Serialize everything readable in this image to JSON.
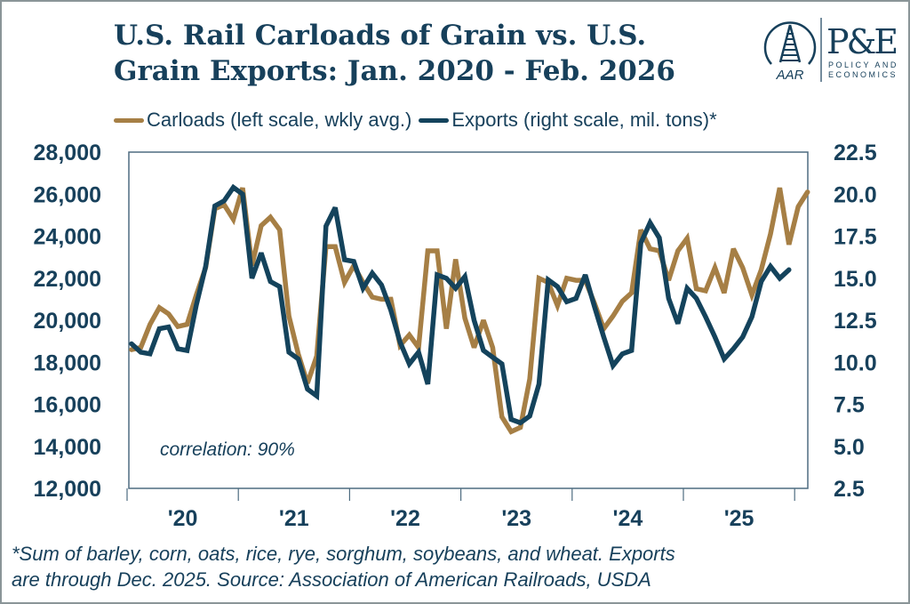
{
  "title_line1": "U.S. Rail Carloads of Grain vs. U.S.",
  "title_line2": "Grain Exports: Jan. 2020 - Feb. 2026",
  "logo": {
    "aar_text": "AAR",
    "pe_text": "P&E",
    "pe_sub1": "POLICY AND",
    "pe_sub2": "ECONOMICS"
  },
  "footnote_line1": "*Sum of barley, corn, oats, rice, rye, sorghum, soybeans, and wheat. Exports",
  "footnote_line2": "are through Dec. 2025.  Source: Association of American Railroads, USDA",
  "colors": {
    "carloads": "#a67f45",
    "exports": "#14435c",
    "text": "#17405b",
    "axis": "#4e6c80"
  },
  "chart_data": {
    "type": "line",
    "title": "U.S. Rail Carloads of Grain vs. U.S. Grain Exports: Jan. 2020 - Feb. 2026",
    "annotation": "correlation: 90%",
    "x_start": "2020-01",
    "x_unit": "month",
    "x_ticks": [
      "'20",
      "'21",
      "'22",
      "'23",
      "'24",
      "'25"
    ],
    "grid": false,
    "legend_position": "top",
    "y_left": {
      "label": "Carloads (left scale, wkly avg.)",
      "range": [
        12000,
        28000
      ],
      "ticks": [
        "12,000",
        "14,000",
        "16,000",
        "18,000",
        "20,000",
        "22,000",
        "24,000",
        "26,000",
        "28,000"
      ]
    },
    "y_right": {
      "label": "Exports (right scale, mil. tons)*",
      "range": [
        2.5,
        22.5
      ],
      "ticks": [
        "2.5",
        "5.0",
        "7.5",
        "10.0",
        "12.5",
        "15.0",
        "17.5",
        "20.0",
        "22.5"
      ]
    },
    "series": [
      {
        "name": "Carloads (left scale, wkly avg.)",
        "axis": "left",
        "values": [
          18600,
          18700,
          19800,
          20600,
          20300,
          19700,
          19800,
          21200,
          22500,
          25300,
          25500,
          24800,
          26300,
          22600,
          24500,
          24900,
          24300,
          20200,
          18400,
          17000,
          18300,
          23500,
          23500,
          21800,
          22600,
          21800,
          21100,
          21000,
          21000,
          18800,
          19300,
          18700,
          23300,
          23300,
          19600,
          22900,
          20100,
          18700,
          20000,
          18700,
          15400,
          14700,
          14900,
          17200,
          22000,
          21800,
          20700,
          22000,
          21900,
          21900,
          20800,
          19600,
          20200,
          20900,
          21300,
          24300,
          23400,
          23300,
          21900,
          23300,
          23900,
          21500,
          21400,
          22500,
          21300,
          23400,
          22500,
          21200,
          22400,
          24100,
          26300,
          23600,
          25400,
          26100
        ]
      },
      {
        "name": "Exports (right scale, mil. tons)*",
        "axis": "right",
        "values": [
          11.1,
          10.6,
          10.5,
          12.0,
          12.1,
          10.8,
          10.7,
          13.4,
          15.7,
          19.3,
          19.6,
          20.4,
          20.0,
          15.0,
          16.5,
          14.8,
          14.5,
          10.6,
          10.2,
          8.4,
          8.0,
          18.1,
          19.2,
          16.1,
          16.0,
          14.4,
          15.3,
          14.6,
          13.1,
          11.2,
          9.9,
          10.6,
          8.7,
          15.2,
          15.0,
          14.4,
          15.1,
          12.5,
          10.7,
          10.3,
          9.9,
          6.6,
          6.4,
          6.8,
          8.7,
          14.9,
          14.5,
          13.6,
          13.8,
          15.2,
          13.3,
          11.5,
          9.8,
          10.5,
          10.7,
          17.1,
          18.3,
          17.4,
          13.8,
          12.3,
          14.4,
          13.8,
          12.7,
          11.5,
          10.2,
          10.8,
          11.5,
          12.7,
          14.8,
          15.7,
          15.0,
          15.5
        ]
      }
    ]
  }
}
